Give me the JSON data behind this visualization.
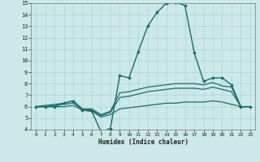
{
  "xlabel": "Humidex (Indice chaleur)",
  "bg_color": "#cce8e8",
  "grid_color": "#b0d4d4",
  "line_color": "#1a6b6b",
  "xlim": [
    -0.5,
    23.5
  ],
  "ylim": [
    4,
    15
  ],
  "xticks": [
    0,
    1,
    2,
    3,
    4,
    5,
    6,
    7,
    8,
    9,
    10,
    11,
    12,
    13,
    14,
    15,
    16,
    17,
    18,
    19,
    20,
    21,
    22,
    23
  ],
  "yticks": [
    4,
    5,
    6,
    7,
    8,
    9,
    10,
    11,
    12,
    13,
    14,
    15
  ],
  "series": [
    {
      "x": [
        0,
        1,
        2,
        3,
        4,
        5,
        6,
        7,
        8,
        9,
        10,
        11,
        12,
        13,
        14,
        15,
        16,
        17,
        18,
        19,
        20,
        21,
        22,
        23
      ],
      "y": [
        6,
        6,
        6,
        6.3,
        6.5,
        5.7,
        5.6,
        3.8,
        4.1,
        8.7,
        8.5,
        10.8,
        13.0,
        14.2,
        15.0,
        15.1,
        14.8,
        10.7,
        8.2,
        8.5,
        8.5,
        7.9,
        6.0,
        6.0
      ],
      "marker": "D",
      "markersize": 1.8,
      "linewidth": 1.0
    },
    {
      "x": [
        0,
        1,
        2,
        3,
        4,
        5,
        6,
        7,
        8,
        9,
        10,
        11,
        12,
        13,
        14,
        15,
        16,
        17,
        18,
        19,
        20,
        21,
        22,
        23
      ],
      "y": [
        6,
        6.1,
        6.2,
        6.3,
        6.5,
        5.8,
        5.8,
        5.3,
        5.6,
        7.2,
        7.3,
        7.5,
        7.7,
        7.8,
        7.9,
        8.0,
        8.0,
        8.0,
        7.9,
        8.1,
        7.8,
        7.7,
        6.0,
        6.0
      ],
      "marker": null,
      "linewidth": 0.9
    },
    {
      "x": [
        0,
        1,
        2,
        3,
        4,
        5,
        6,
        7,
        8,
        9,
        10,
        11,
        12,
        13,
        14,
        15,
        16,
        17,
        18,
        19,
        20,
        21,
        22,
        23
      ],
      "y": [
        6,
        6.0,
        6.1,
        6.2,
        6.3,
        5.8,
        5.7,
        5.2,
        5.5,
        6.8,
        6.9,
        7.1,
        7.3,
        7.4,
        7.5,
        7.6,
        7.6,
        7.6,
        7.5,
        7.7,
        7.5,
        7.3,
        6.0,
        6.0
      ],
      "marker": null,
      "linewidth": 0.9
    },
    {
      "x": [
        0,
        1,
        2,
        3,
        4,
        5,
        6,
        7,
        8,
        9,
        10,
        11,
        12,
        13,
        14,
        15,
        16,
        17,
        18,
        19,
        20,
        21,
        22,
        23
      ],
      "y": [
        6,
        6.0,
        6.0,
        6.0,
        6.1,
        5.7,
        5.6,
        5.1,
        5.3,
        5.8,
        5.9,
        6.0,
        6.1,
        6.2,
        6.3,
        6.3,
        6.4,
        6.4,
        6.4,
        6.5,
        6.4,
        6.2,
        6.0,
        6.0
      ],
      "marker": null,
      "linewidth": 0.9
    }
  ]
}
